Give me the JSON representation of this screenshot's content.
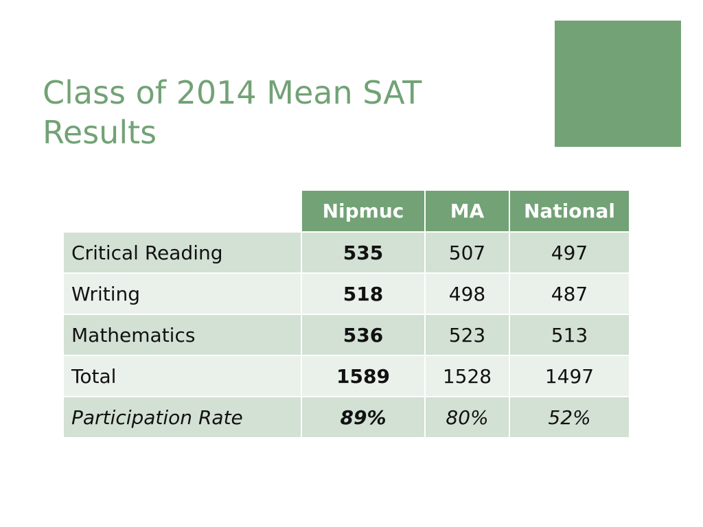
{
  "slide": {
    "title_line1": "Class of 2014 Mean SAT",
    "title_line2": "Results",
    "accent_color": "#72a275"
  },
  "table": {
    "headers": [
      "",
      "Nipmuc",
      "MA",
      "National"
    ],
    "rows": [
      {
        "label": "Critical Reading",
        "nipmuc": "535",
        "ma": "507",
        "national": "497"
      },
      {
        "label": "Writing",
        "nipmuc": "518",
        "ma": "498",
        "national": "487"
      },
      {
        "label": "Mathematics",
        "nipmuc": "536",
        "ma": "523",
        "national": "513"
      },
      {
        "label": "Total",
        "nipmuc": "1589",
        "ma": "1528",
        "national": "1497"
      },
      {
        "label": "Participation Rate",
        "nipmuc": "89%",
        "ma": "80%",
        "national": "52%"
      }
    ],
    "header_color": "#72a275",
    "row_color_odd": "#d3e0d4",
    "row_color_even": "#eaf0ea"
  }
}
